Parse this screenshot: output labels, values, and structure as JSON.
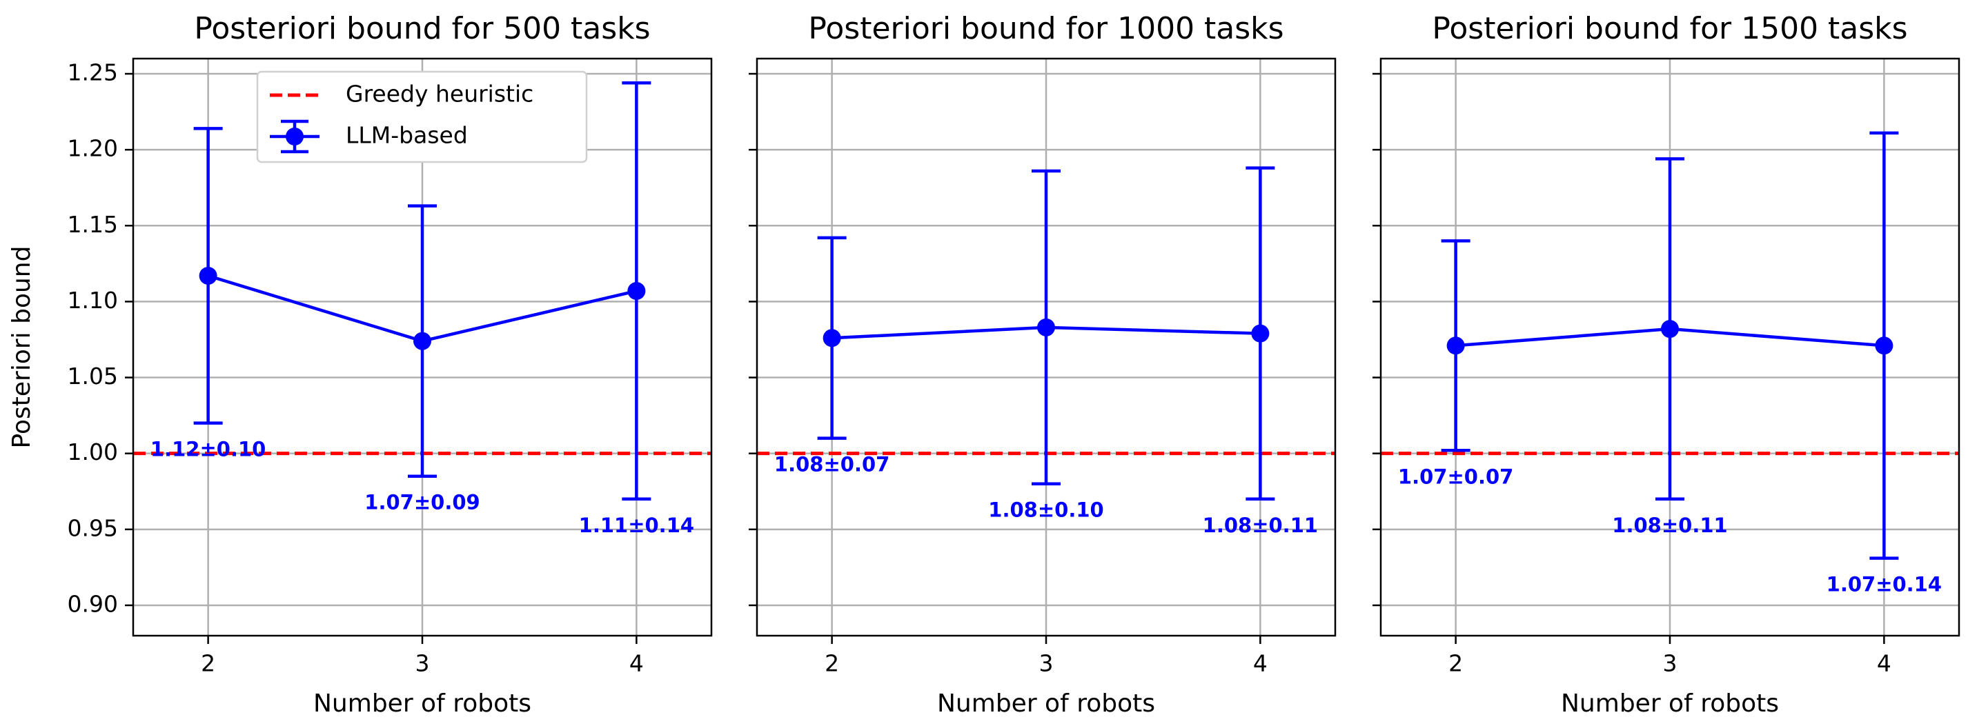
{
  "chart_data": [
    {
      "type": "line",
      "title": "Posteriori bound for 500 tasks",
      "x_label": "Number of robots",
      "y_label": "Posteriori bound",
      "x": [
        2,
        3,
        4
      ],
      "xlim": [
        1.65,
        4.35
      ],
      "xticks": [
        2,
        3,
        4
      ],
      "ylim": [
        0.88,
        1.26
      ],
      "yticks": [
        {
          "value": 0.9,
          "label": "0.90"
        },
        0.95,
        {
          "value": 1.0,
          "label": "1.00"
        },
        1.05,
        {
          "value": 1.1,
          "label": "1.10"
        },
        1.15,
        {
          "value": 1.2,
          "label": "1.20"
        },
        1.25
      ],
      "grid": true,
      "legend": "upper center",
      "reference_line": {
        "name": "Greedy heuristic",
        "value": 1.0,
        "color": "#ff0000"
      },
      "series": [
        {
          "name": "LLM-based",
          "color": "#0000ff",
          "values": [
            1.117,
            1.074,
            1.107
          ],
          "errors": [
            0.097,
            0.089,
            0.137
          ],
          "value_labels": [
            "1.12±0.10",
            "1.07±0.09",
            "1.11±0.14"
          ]
        }
      ]
    },
    {
      "type": "line",
      "title": "Posteriori bound for 1000 tasks",
      "x_label": "Number of robots",
      "x": [
        2,
        3,
        4
      ],
      "xlim": [
        1.65,
        4.35
      ],
      "xticks": [
        2,
        3,
        4
      ],
      "ylim": [
        0.88,
        1.26
      ],
      "yticks": [
        0.9,
        0.95,
        1.0,
        1.05,
        1.1,
        1.15,
        1.2,
        1.25
      ],
      "ytick_labels": false,
      "grid": true,
      "reference_line": {
        "value": 1.0,
        "color": "#ff0000"
      },
      "series": [
        {
          "color": "#0000ff",
          "values": [
            1.076,
            1.083,
            1.079
          ],
          "errors": [
            0.066,
            0.103,
            0.109
          ],
          "value_labels": [
            "1.08±0.07",
            "1.08±0.10",
            "1.08±0.11"
          ]
        }
      ]
    },
    {
      "type": "line",
      "title": "Posteriori bound for 1500 tasks",
      "x_label": "Number of robots",
      "x": [
        2,
        3,
        4
      ],
      "xlim": [
        1.65,
        4.35
      ],
      "xticks": [
        2,
        3,
        4
      ],
      "ylim": [
        0.88,
        1.26
      ],
      "yticks": [
        0.9,
        0.95,
        1.0,
        1.05,
        1.1,
        1.15,
        1.2,
        1.25
      ],
      "ytick_labels": false,
      "grid": true,
      "reference_line": {
        "value": 1.0,
        "color": "#ff0000"
      },
      "series": [
        {
          "color": "#0000ff",
          "values": [
            1.071,
            1.082,
            1.071
          ],
          "errors": [
            0.069,
            0.112,
            0.14
          ],
          "value_labels": [
            "1.07±0.07",
            "1.08±0.11",
            "1.07±0.14"
          ]
        }
      ]
    }
  ]
}
